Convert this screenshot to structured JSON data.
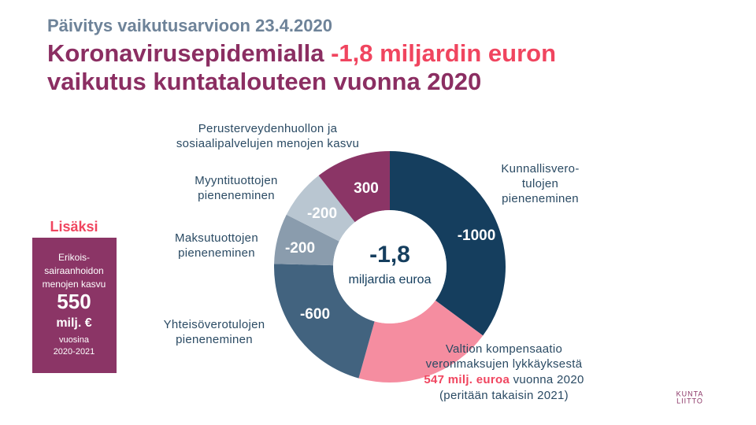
{
  "chart_data": {
    "type": "donut",
    "kicker": "Päivitys vaikutusarvioon 23.4.2020",
    "title": [
      "Koronavirusepidemialla ",
      "-1,8 miljardin euron",
      "vaikutus kuntatalouteen vuonna 2020"
    ],
    "center_value": "-1,8",
    "center_label": "miljardia euroa",
    "categories": [
      [
        "Kunnallisvero-",
        "tulojen",
        "pieneneminen"
      ],
      [
        "Valtion kompensaatio",
        "veronmaksujen lykkäyksestä"
      ],
      [
        "Yhteisöverotulojen",
        "pieneneminen"
      ],
      [
        "Maksutuottojen",
        "pieneneminen"
      ],
      [
        "Myyntituottojen",
        "pieneneminen"
      ],
      [
        "Perusterveydenhuollon ja",
        "sosiaalipalvelujen menojen kasvu"
      ]
    ],
    "values": [
      -1000,
      547,
      -600,
      -200,
      -200,
      300
    ],
    "value_labels": [
      "-1000",
      "547 milj. euroa",
      "-600",
      "-200",
      "-200",
      "300"
    ],
    "value_label_positions": [
      "inside",
      "outside",
      "inside",
      "inside",
      "inside",
      "inside"
    ],
    "colors": [
      "#153e5e",
      "#f58da0",
      "#42637f",
      "#8a9cad",
      "#b9c6d1",
      "#8b3566"
    ],
    "compensation_note": [
      "vuonna 2020",
      "(peritään takaisin 2021)"
    ],
    "side_box": {
      "heading": "Lisäksi",
      "lines": [
        "Erikois-",
        "sairaanhoidon",
        "menojen kasvu"
      ],
      "value": "550",
      "unit": "milj. €",
      "period": [
        "vuosina",
        "2020-2021"
      ]
    },
    "logo": [
      "KUNTA",
      "LIITTO"
    ]
  }
}
